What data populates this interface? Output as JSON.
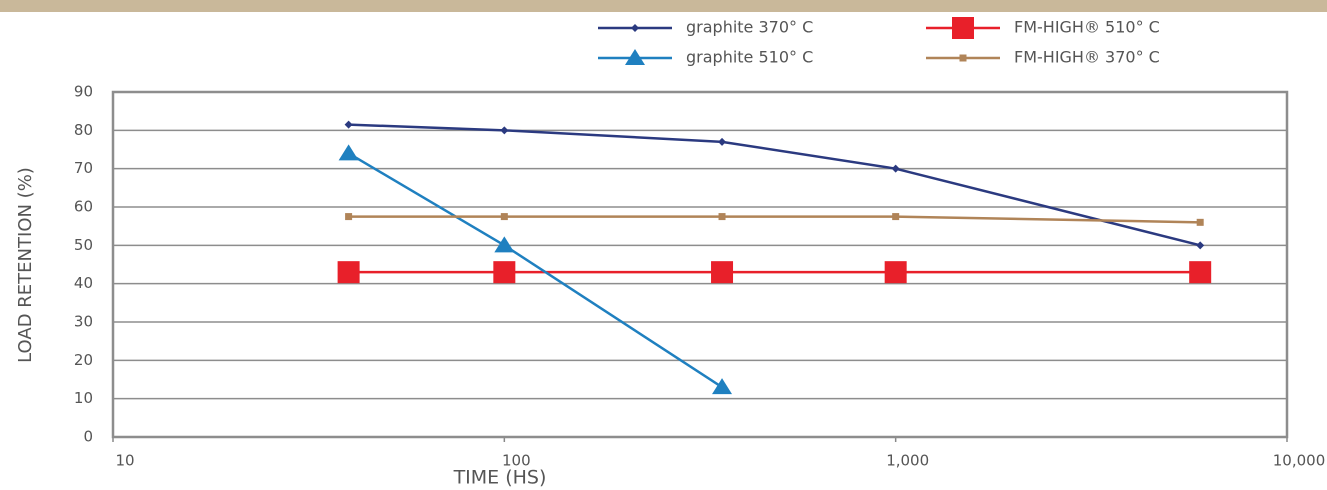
{
  "chart_data": {
    "type": "line",
    "x_label": "TIME (HS)",
    "y_label": "LOAD RETENTION (%)",
    "x": [
      40,
      100,
      360,
      1000,
      6000
    ],
    "series": [
      {
        "name": "graphite 370° C",
        "color": "#2b3a80",
        "marker": "diamond",
        "values": [
          81.5,
          80,
          77,
          70,
          50
        ]
      },
      {
        "name": "FM-HIGH® 510° C",
        "color": "#e8202a",
        "marker": "square",
        "values": [
          43,
          43,
          43,
          43,
          43
        ]
      },
      {
        "name": "graphite 510° C",
        "color": "#1f80c0",
        "marker": "triangle",
        "values": [
          74,
          50,
          13,
          null,
          null
        ]
      },
      {
        "name": "FM-HIGH® 370° C",
        "color": "#b08458",
        "marker": "small-square",
        "values": [
          57.5,
          57.5,
          57.5,
          57.5,
          56
        ]
      }
    ],
    "xscale": "log",
    "xlim": [
      10,
      10000
    ],
    "xticks": [
      10,
      100,
      {
        "value": 1000,
        "label": "1,000"
      },
      {
        "value": 10000,
        "label": "10,000"
      }
    ],
    "ylim": [
      0,
      90
    ],
    "yticks": [
      0,
      10,
      20,
      30,
      40,
      50,
      60,
      70,
      80,
      90
    ],
    "grid": true,
    "legend": "top-right"
  }
}
